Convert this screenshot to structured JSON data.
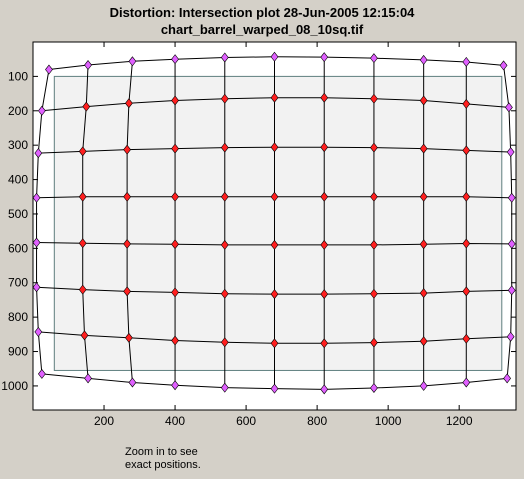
{
  "title": {
    "line1": "Distortion: Intersection plot  28-Jun-2005 12:15:04",
    "line2": "chart_barrel_warped_08_10sq.tif"
  },
  "note": {
    "line1": "Zoom in to see",
    "line2": "exact positions."
  },
  "colors": {
    "figure_background": "#d4d0c8",
    "plot_background": "#ffffff",
    "inner_rectangle_fill": "#f2f2f2",
    "inner_rectangle_border": "#5f7f7f",
    "outer_marker": "#e060ff",
    "inner_marker": "#ff1f1f",
    "grid_line": "#000000"
  },
  "chart_data": {
    "type": "scatter",
    "x_ticks": [
      "200",
      "400",
      "600",
      "800",
      "1000",
      "1200"
    ],
    "y_ticks": [
      "100",
      "200",
      "300",
      "400",
      "500",
      "600",
      "700",
      "800",
      "900",
      "1000"
    ],
    "xlim": [
      0,
      1360
    ],
    "ylim": [
      1070,
      0
    ],
    "y_axis_reversed": true,
    "grid": false,
    "inner_rectangle": {
      "x": [
        60,
        1320
      ],
      "y": [
        100,
        955
      ]
    },
    "series": [
      {
        "values": [
          [
            [
              45,
              80
            ],
            [
              155,
              67
            ],
            [
              280,
              56
            ],
            [
              400,
              50
            ],
            [
              540,
              45
            ],
            [
              680,
              43
            ],
            [
              820,
              44
            ],
            [
              960,
              47
            ],
            [
              1100,
              52
            ],
            [
              1220,
              58
            ],
            [
              1325,
              68
            ]
          ],
          [
            [
              25,
              200
            ],
            [
              150,
              188
            ],
            [
              270,
              178
            ],
            [
              400,
              170
            ],
            [
              540,
              165
            ],
            [
              680,
              162
            ],
            [
              820,
              162
            ],
            [
              960,
              165
            ],
            [
              1100,
              170
            ],
            [
              1220,
              180
            ],
            [
              1340,
              190
            ]
          ],
          [
            [
              15,
              323
            ],
            [
              140,
              318
            ],
            [
              265,
              313
            ],
            [
              400,
              310
            ],
            [
              540,
              307
            ],
            [
              680,
              306
            ],
            [
              820,
              306
            ],
            [
              960,
              307
            ],
            [
              1100,
              310
            ],
            [
              1220,
              315
            ],
            [
              1345,
              320
            ]
          ],
          [
            [
              10,
              453
            ],
            [
              140,
              450
            ],
            [
              265,
              450
            ],
            [
              400,
              450
            ],
            [
              540,
              450
            ],
            [
              680,
              450
            ],
            [
              820,
              450
            ],
            [
              960,
              450
            ],
            [
              1100,
              450
            ],
            [
              1220,
              450
            ],
            [
              1348,
              453
            ]
          ],
          [
            [
              10,
              583
            ],
            [
              140,
              585
            ],
            [
              265,
              587
            ],
            [
              400,
              588
            ],
            [
              540,
              590
            ],
            [
              680,
              590
            ],
            [
              820,
              590
            ],
            [
              960,
              590
            ],
            [
              1100,
              588
            ],
            [
              1220,
              586
            ],
            [
              1348,
              587
            ]
          ],
          [
            [
              10,
              713
            ],
            [
              140,
              720
            ],
            [
              265,
              725
            ],
            [
              400,
              728
            ],
            [
              540,
              732
            ],
            [
              680,
              733
            ],
            [
              820,
              733
            ],
            [
              960,
              732
            ],
            [
              1100,
              730
            ],
            [
              1220,
              725
            ],
            [
              1348,
              722
            ]
          ],
          [
            [
              15,
              843
            ],
            [
              145,
              853
            ],
            [
              270,
              860
            ],
            [
              400,
              868
            ],
            [
              540,
              873
            ],
            [
              680,
              876
            ],
            [
              820,
              876
            ],
            [
              960,
              874
            ],
            [
              1100,
              870
            ],
            [
              1220,
              863
            ],
            [
              1345,
              857
            ]
          ],
          [
            [
              25,
              965
            ],
            [
              155,
              978
            ],
            [
              280,
              990
            ],
            [
              400,
              998
            ],
            [
              540,
              1005
            ],
            [
              680,
              1008
            ],
            [
              820,
              1010
            ],
            [
              960,
              1006
            ],
            [
              1100,
              1000
            ],
            [
              1220,
              990
            ],
            [
              1335,
              978
            ]
          ]
        ]
      }
    ]
  }
}
